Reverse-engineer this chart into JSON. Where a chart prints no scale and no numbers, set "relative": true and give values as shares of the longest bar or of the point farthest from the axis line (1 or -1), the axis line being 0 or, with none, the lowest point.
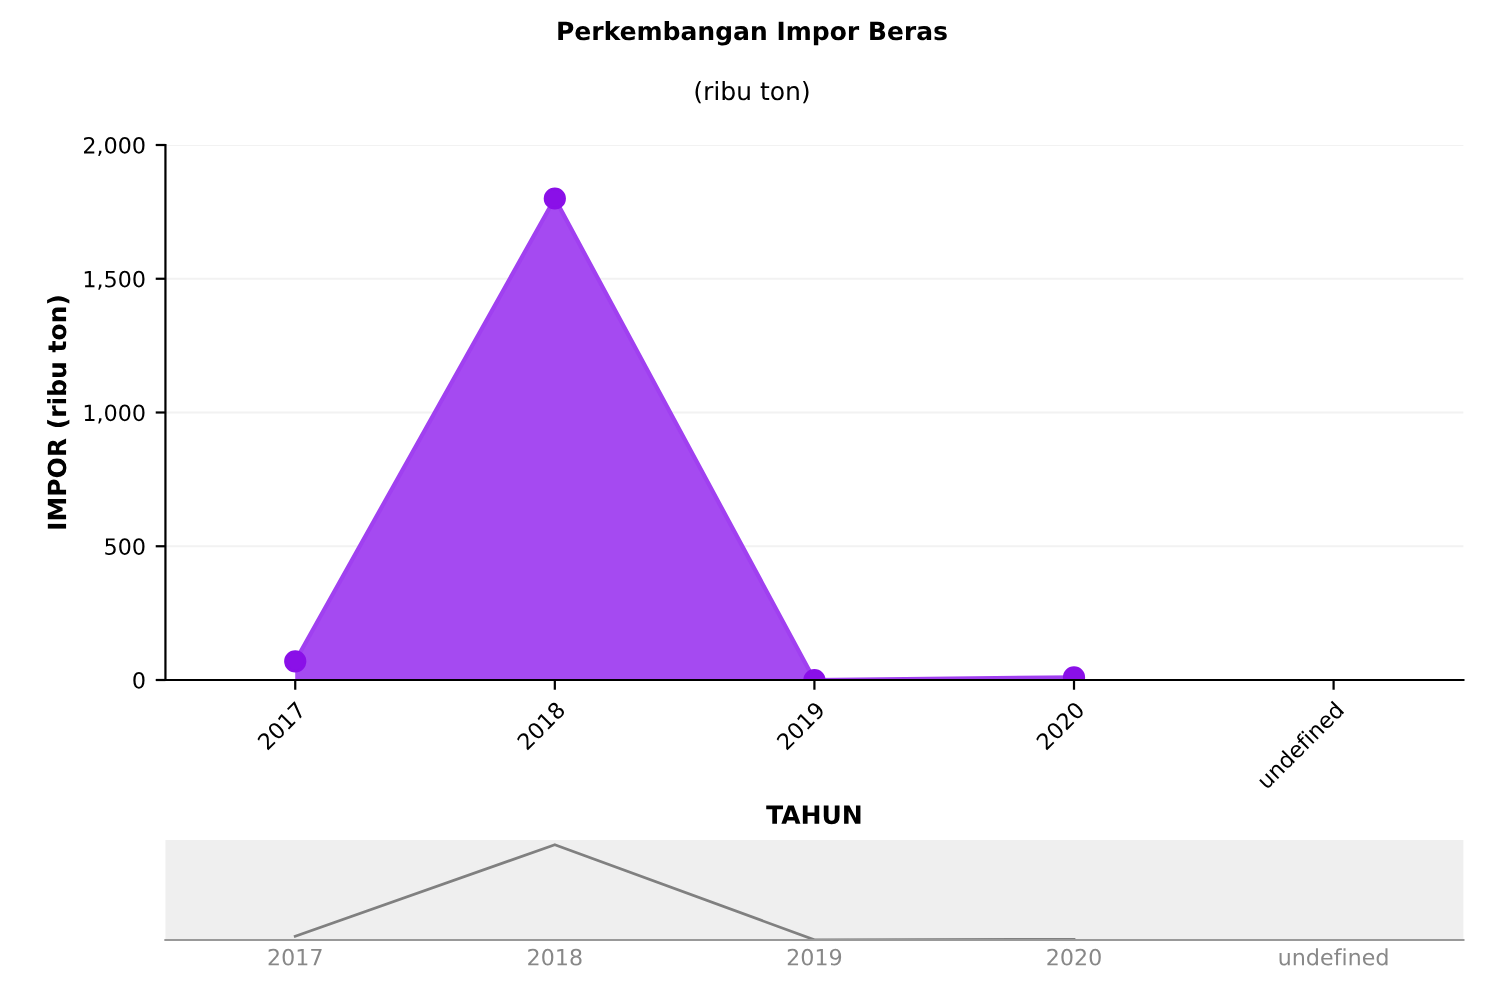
{
  "chart_data": [
    {
      "type": "area",
      "title": "Perkembangan Impor Beras",
      "subtitle": "(ribu ton)",
      "xlabel": "TAHUN",
      "ylabel": "IMPOR (ribu ton)",
      "categories": [
        "2017",
        "2018",
        "2019",
        "2020",
        "undefined"
      ],
      "series": [
        {
          "color": "#a040f0",
          "values": [
            70,
            1800,
            0,
            10,
            null
          ]
        }
      ],
      "ylim": [
        0,
        2000
      ],
      "yticks": [
        {
          "value": 0,
          "label": "0"
        },
        {
          "value": 500,
          "label": "500"
        },
        {
          "value": 1000,
          "label": "1,000"
        },
        {
          "value": 1500,
          "label": "1,500"
        },
        {
          "value": 2000,
          "label": "2,000"
        }
      ],
      "grid": "y",
      "marker": "circle"
    },
    {
      "type": "line",
      "relative": true,
      "categories": [
        "2017",
        "2018",
        "2019",
        "2020",
        "undefined"
      ],
      "series": [
        {
          "color": "#808080",
          "values": [
            0.039,
            1,
            0.002,
            0.006,
            null
          ]
        }
      ]
    }
  ]
}
